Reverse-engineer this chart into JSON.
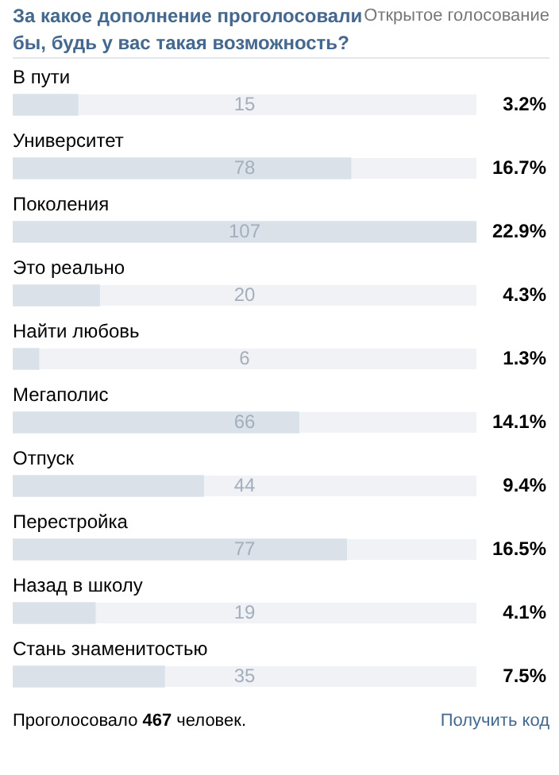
{
  "chart_data": {
    "type": "bar",
    "orientation": "horizontal",
    "title": "За какое дополнение проголосовали бы, будь у вас такая возможность?",
    "subtitle": "Открытое голосование",
    "categories": [
      "В пути",
      "Университет",
      "Поколения",
      "Это реально",
      "Найти любовь",
      "Мегаполис",
      "Отпуск",
      "Перестройка",
      "Назад в школу",
      "Стань знаменитостью"
    ],
    "values": [
      15,
      78,
      107,
      20,
      6,
      66,
      44,
      77,
      19,
      35
    ],
    "value_labels": [
      "15",
      "78",
      "107",
      "20",
      "6",
      "66",
      "44",
      "77",
      "19",
      "35"
    ],
    "color": "#dae1e8",
    "legend": false,
    "annotations": [
      "3.2%",
      "16.7%",
      "22.9%",
      "4.3%",
      "1.3%",
      "14.1%",
      "9.4%",
      "16.5%",
      "4.1%",
      "7.5%",
      "Проголосовало 467 человек.",
      "Получить код"
    ]
  }
}
